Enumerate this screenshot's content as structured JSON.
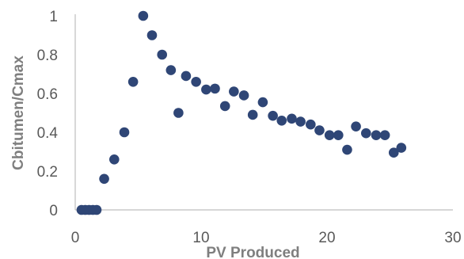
{
  "chart_data": {
    "type": "scatter",
    "title": "",
    "xlabel": "PV Produced",
    "ylabel": "Cbitumen/Cmax",
    "xlim": [
      0,
      30
    ],
    "ylim": [
      0,
      1
    ],
    "x_ticks": [
      "0",
      "10",
      "20",
      "30"
    ],
    "y_ticks": [
      "0",
      "0.2",
      "0.4",
      "0.6",
      "0.8",
      "1"
    ],
    "grid": false,
    "legend": "none",
    "marker_color": "#2f4676",
    "series": [
      {
        "points": [
          [
            0.5,
            0
          ],
          [
            0.8,
            0
          ],
          [
            1.1,
            0
          ],
          [
            1.4,
            0
          ],
          [
            1.7,
            0
          ],
          [
            2.3,
            0.16
          ],
          [
            3.1,
            0.26
          ],
          [
            3.9,
            0.4
          ],
          [
            4.6,
            0.66
          ],
          [
            5.4,
            1.0
          ],
          [
            6.1,
            0.9
          ],
          [
            6.9,
            0.8
          ],
          [
            7.6,
            0.72
          ],
          [
            8.2,
            0.5
          ],
          [
            8.8,
            0.69
          ],
          [
            9.6,
            0.66
          ],
          [
            10.4,
            0.62
          ],
          [
            11.1,
            0.625
          ],
          [
            11.9,
            0.535
          ],
          [
            12.6,
            0.61
          ],
          [
            13.4,
            0.59
          ],
          [
            14.1,
            0.49
          ],
          [
            14.9,
            0.555
          ],
          [
            15.7,
            0.485
          ],
          [
            16.4,
            0.46
          ],
          [
            17.2,
            0.47
          ],
          [
            17.9,
            0.455
          ],
          [
            18.7,
            0.44
          ],
          [
            19.4,
            0.41
          ],
          [
            20.2,
            0.385
          ],
          [
            20.9,
            0.385
          ],
          [
            21.6,
            0.31
          ],
          [
            22.3,
            0.43
          ],
          [
            23.1,
            0.395
          ],
          [
            23.9,
            0.385
          ],
          [
            24.6,
            0.385
          ],
          [
            25.3,
            0.295
          ],
          [
            25.9,
            0.32
          ]
        ]
      }
    ]
  }
}
